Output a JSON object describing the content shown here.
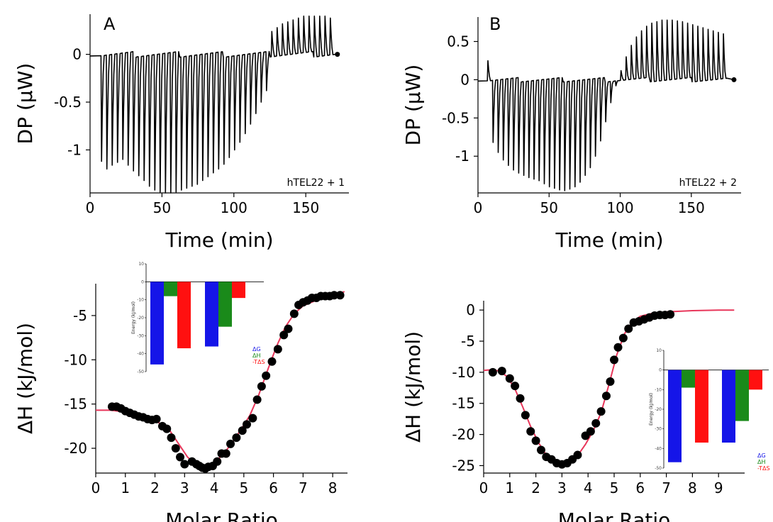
{
  "chart_data": [
    {
      "panel_label": "A",
      "type": "line",
      "xlabel": "Time (min)",
      "ylabel": "DP (µW)",
      "xlim": [
        0,
        180
      ],
      "ylim": [
        -1.45,
        0.42
      ],
      "xticks": [
        0,
        50,
        100,
        150
      ],
      "yticks": [
        0,
        -0.5,
        -1
      ],
      "ytick_labels": [
        "0",
        "-0.5",
        "-1"
      ],
      "annotation": "hTEL22 + 1",
      "trace": {
        "baseline": 0.0,
        "start": 8,
        "spacing": 3.7,
        "count": 44,
        "t_end": 172,
        "peaks": [
          -1.12,
          -1.2,
          -1.16,
          -1.13,
          -1.1,
          -1.16,
          -1.22,
          -1.27,
          -1.32,
          -1.38,
          -1.42,
          -1.44,
          -1.45,
          -1.45,
          -1.44,
          -1.42,
          -1.4,
          -1.38,
          -1.36,
          -1.32,
          -1.28,
          -1.24,
          -1.2,
          -1.15,
          -1.08,
          -1.0,
          -0.92,
          -0.83,
          -0.73,
          -0.62,
          -0.5,
          -0.38,
          0.24,
          0.28,
          0.32,
          0.34,
          0.36,
          0.38,
          0.4,
          0.4,
          0.4,
          0.4,
          0.4,
          0.38
        ]
      }
    },
    {
      "panel_label": "B",
      "type": "line",
      "xlabel": "Time (min)",
      "ylabel": "DP (µW)",
      "xlim": [
        0,
        185
      ],
      "ylim": [
        -1.48,
        0.82
      ],
      "xticks": [
        0,
        50,
        100,
        150
      ],
      "yticks": [
        0.5,
        0,
        -0.5,
        -1
      ],
      "ytick_labels": [
        "0.5",
        "0",
        "-0.5",
        "-1"
      ],
      "annotation": "hTEL22 + 2",
      "trace": {
        "baseline": 0.0,
        "start": 7,
        "spacing": 3.6,
        "count": 47,
        "t_end": 180,
        "peaks": [
          0.25,
          -0.82,
          -0.95,
          -1.05,
          -1.12,
          -1.18,
          -1.22,
          -1.25,
          -1.28,
          -1.3,
          -1.32,
          -1.36,
          -1.4,
          -1.42,
          -1.44,
          -1.45,
          -1.43,
          -1.4,
          -1.34,
          -1.25,
          -1.15,
          -1.0,
          -0.8,
          -0.55,
          -0.3,
          -0.08,
          0.12,
          0.3,
          0.45,
          0.56,
          0.64,
          0.7,
          0.74,
          0.76,
          0.78,
          0.78,
          0.78,
          0.77,
          0.76,
          0.74,
          0.72,
          0.7,
          0.68,
          0.66,
          0.64,
          0.62,
          0.6
        ]
      }
    },
    {
      "type": "scatter",
      "xlabel": "Molar Ratio",
      "ylabel": "ΔH (kJ/mol)",
      "xlim": [
        0,
        8.5
      ],
      "ylim": [
        -22.8,
        -1.4
      ],
      "xticks": [
        0,
        1,
        2,
        3,
        4,
        5,
        6,
        7,
        8
      ],
      "yticks": [
        -5,
        -10,
        -15,
        -20
      ],
      "ytick_labels": [
        "-5",
        "-10",
        "-15",
        "-20"
      ],
      "x": [
        0.55,
        0.7,
        0.85,
        1.0,
        1.15,
        1.3,
        1.45,
        1.6,
        1.75,
        1.9,
        2.05,
        2.25,
        2.4,
        2.55,
        2.7,
        2.85,
        3.0,
        3.25,
        3.4,
        3.5,
        3.6,
        3.7,
        3.8,
        3.95,
        4.1,
        4.25,
        4.4,
        4.55,
        4.75,
        4.95,
        5.1,
        5.3,
        5.45,
        5.6,
        5.75,
        5.95,
        6.15,
        6.35,
        6.5,
        6.7,
        6.85,
        7.0,
        7.15,
        7.3,
        7.45,
        7.6,
        7.75,
        7.9,
        8.05,
        8.25
      ],
      "y": [
        -15.3,
        -15.3,
        -15.5,
        -15.8,
        -16.0,
        -16.2,
        -16.4,
        -16.5,
        -16.7,
        -16.8,
        -16.7,
        -17.5,
        -17.8,
        -18.8,
        -20.0,
        -21.0,
        -21.8,
        -21.5,
        -21.8,
        -22.0,
        -22.2,
        -22.3,
        -22.1,
        -22.0,
        -21.5,
        -20.6,
        -20.6,
        -19.5,
        -18.8,
        -18.0,
        -17.3,
        -16.6,
        -14.5,
        -13.0,
        -11.8,
        -10.2,
        -8.8,
        -7.2,
        -6.5,
        -4.8,
        -3.8,
        -3.5,
        -3.3,
        -3.0,
        -3.0,
        -2.8,
        -2.8,
        -2.8,
        -2.7,
        -2.7
      ],
      "fit": {
        "x": [
          0,
          0.5,
          1,
          1.5,
          2,
          2.5,
          2.8,
          3.1,
          3.4,
          3.7,
          4,
          4.3,
          4.6,
          4.9,
          5.2,
          5.5,
          5.8,
          6.1,
          6.4,
          6.7,
          7,
          7.5,
          8,
          8.4
        ],
        "y": [
          -15.7,
          -15.7,
          -15.9,
          -16.2,
          -16.8,
          -18.0,
          -19.5,
          -21.0,
          -21.9,
          -22.1,
          -21.6,
          -20.7,
          -19.4,
          -17.9,
          -16.3,
          -14.0,
          -11.2,
          -8.5,
          -6.3,
          -4.8,
          -3.9,
          -3.2,
          -2.7,
          -2.3
        ]
      },
      "inset": {
        "ylabel": "Energy (kJ/mol)",
        "ylim": [
          -50,
          10
        ],
        "yticks": [
          10,
          0,
          -10,
          -20,
          -30,
          -40,
          -50
        ],
        "groups": [
          {
            "values": [
              -46,
              -8,
              -37
            ]
          },
          {
            "values": [
              -36,
              -25,
              -9
            ]
          }
        ],
        "legend": [
          "ΔG",
          "ΔH",
          "-TΔS"
        ],
        "colors": [
          "#1515e8",
          "#1a8a1a",
          "#ff1010"
        ]
      }
    },
    {
      "type": "scatter",
      "xlabel": "Molar Ratio",
      "ylabel": "ΔH (kJ/mol)",
      "xlim": [
        0,
        10
      ],
      "ylim": [
        -26.2,
        1.5
      ],
      "xticks": [
        0,
        1,
        2,
        3,
        4,
        5,
        6,
        7,
        8,
        9
      ],
      "yticks": [
        0,
        -5,
        -10,
        -15,
        -20,
        -25
      ],
      "ytick_labels": [
        "0",
        "-5",
        "-10",
        "-15",
        "-20",
        "-25"
      ],
      "x": [
        0.35,
        0.7,
        1.0,
        1.2,
        1.4,
        1.6,
        1.8,
        2.0,
        2.2,
        2.4,
        2.6,
        2.8,
        3.0,
        3.2,
        3.4,
        3.6,
        3.9,
        4.1,
        4.3,
        4.5,
        4.7,
        4.85,
        5.0,
        5.15,
        5.35,
        5.55,
        5.75,
        5.95,
        6.15,
        6.35,
        6.55,
        6.75,
        6.95,
        7.15
      ],
      "y": [
        -10.0,
        -9.8,
        -11.0,
        -12.2,
        -14.2,
        -16.9,
        -19.5,
        -21.0,
        -22.5,
        -23.6,
        -24.0,
        -24.6,
        -24.8,
        -24.6,
        -24.0,
        -23.3,
        -20.2,
        -19.5,
        -18.2,
        -16.3,
        -13.8,
        -11.5,
        -8.0,
        -6.0,
        -4.5,
        -3.0,
        -2.0,
        -1.8,
        -1.5,
        -1.2,
        -0.9,
        -0.8,
        -0.8,
        -0.7
      ],
      "fit": {
        "x": [
          0,
          0.3,
          0.6,
          0.9,
          1.2,
          1.5,
          1.8,
          2.1,
          2.4,
          2.7,
          3.0,
          3.3,
          3.6,
          3.9,
          4.2,
          4.5,
          4.8,
          5.1,
          5.4,
          5.7,
          6.0,
          6.5,
          7,
          8,
          9,
          9.6
        ],
        "y": [
          -9.7,
          -9.6,
          -9.8,
          -10.7,
          -12.7,
          -15.6,
          -18.7,
          -21.3,
          -23.3,
          -24.5,
          -25.0,
          -24.6,
          -23.4,
          -21.6,
          -19.4,
          -16.5,
          -12.0,
          -7.2,
          -3.8,
          -1.9,
          -1.0,
          -0.5,
          -0.3,
          -0.1,
          0.0,
          0.0
        ]
      },
      "inset": {
        "ylabel": "Energy (kJ/mol)",
        "ylim": [
          -50,
          10
        ],
        "yticks": [
          10,
          0,
          -10,
          -20,
          -30,
          -40,
          -50
        ],
        "groups": [
          {
            "values": [
              -47,
              -9,
              -37
            ]
          },
          {
            "values": [
              -37,
              -26,
              -10
            ]
          }
        ],
        "legend": [
          "ΔG",
          "ΔH",
          "-TΔS"
        ],
        "colors": [
          "#1515e8",
          "#1a8a1a",
          "#ff1010"
        ]
      }
    }
  ],
  "styles": {
    "trace_color": "#000000",
    "fit_color": "#e8365a",
    "marker_color": "#000000"
  }
}
